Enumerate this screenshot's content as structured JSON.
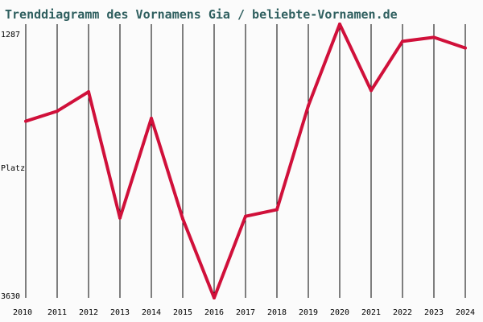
{
  "chart_data": {
    "type": "line",
    "title": "Trenddiagramm des Vornamens Gia / beliebte-Vornamen.de",
    "ylabel": "Platz",
    "y_axis_inverted": true,
    "y_tick_labels": {
      "top": "1287",
      "bottom": "3630"
    },
    "ylim": [
      1287,
      3630
    ],
    "grid": "vertical-lines-per-year",
    "colors": {
      "line": "#d0103a",
      "grid": "#000000",
      "title": "#2f5f5f"
    },
    "x": [
      2010,
      2011,
      2012,
      2013,
      2014,
      2015,
      2016,
      2017,
      2018,
      2019,
      2020,
      2021,
      2022,
      2023,
      2024
    ],
    "x_labels": [
      "2010",
      "2011",
      "2012",
      "2013",
      "2014",
      "2015",
      "2016",
      "2017",
      "2018",
      "2019",
      "2020",
      "2021",
      "2022",
      "2023",
      "2024"
    ],
    "series": [
      {
        "values": [
          2118,
          2032,
          1866,
          2946,
          2093,
          2953,
          3630,
          2932,
          2875,
          1985,
          1287,
          1855,
          1434,
          1400,
          1491
        ]
      }
    ]
  }
}
